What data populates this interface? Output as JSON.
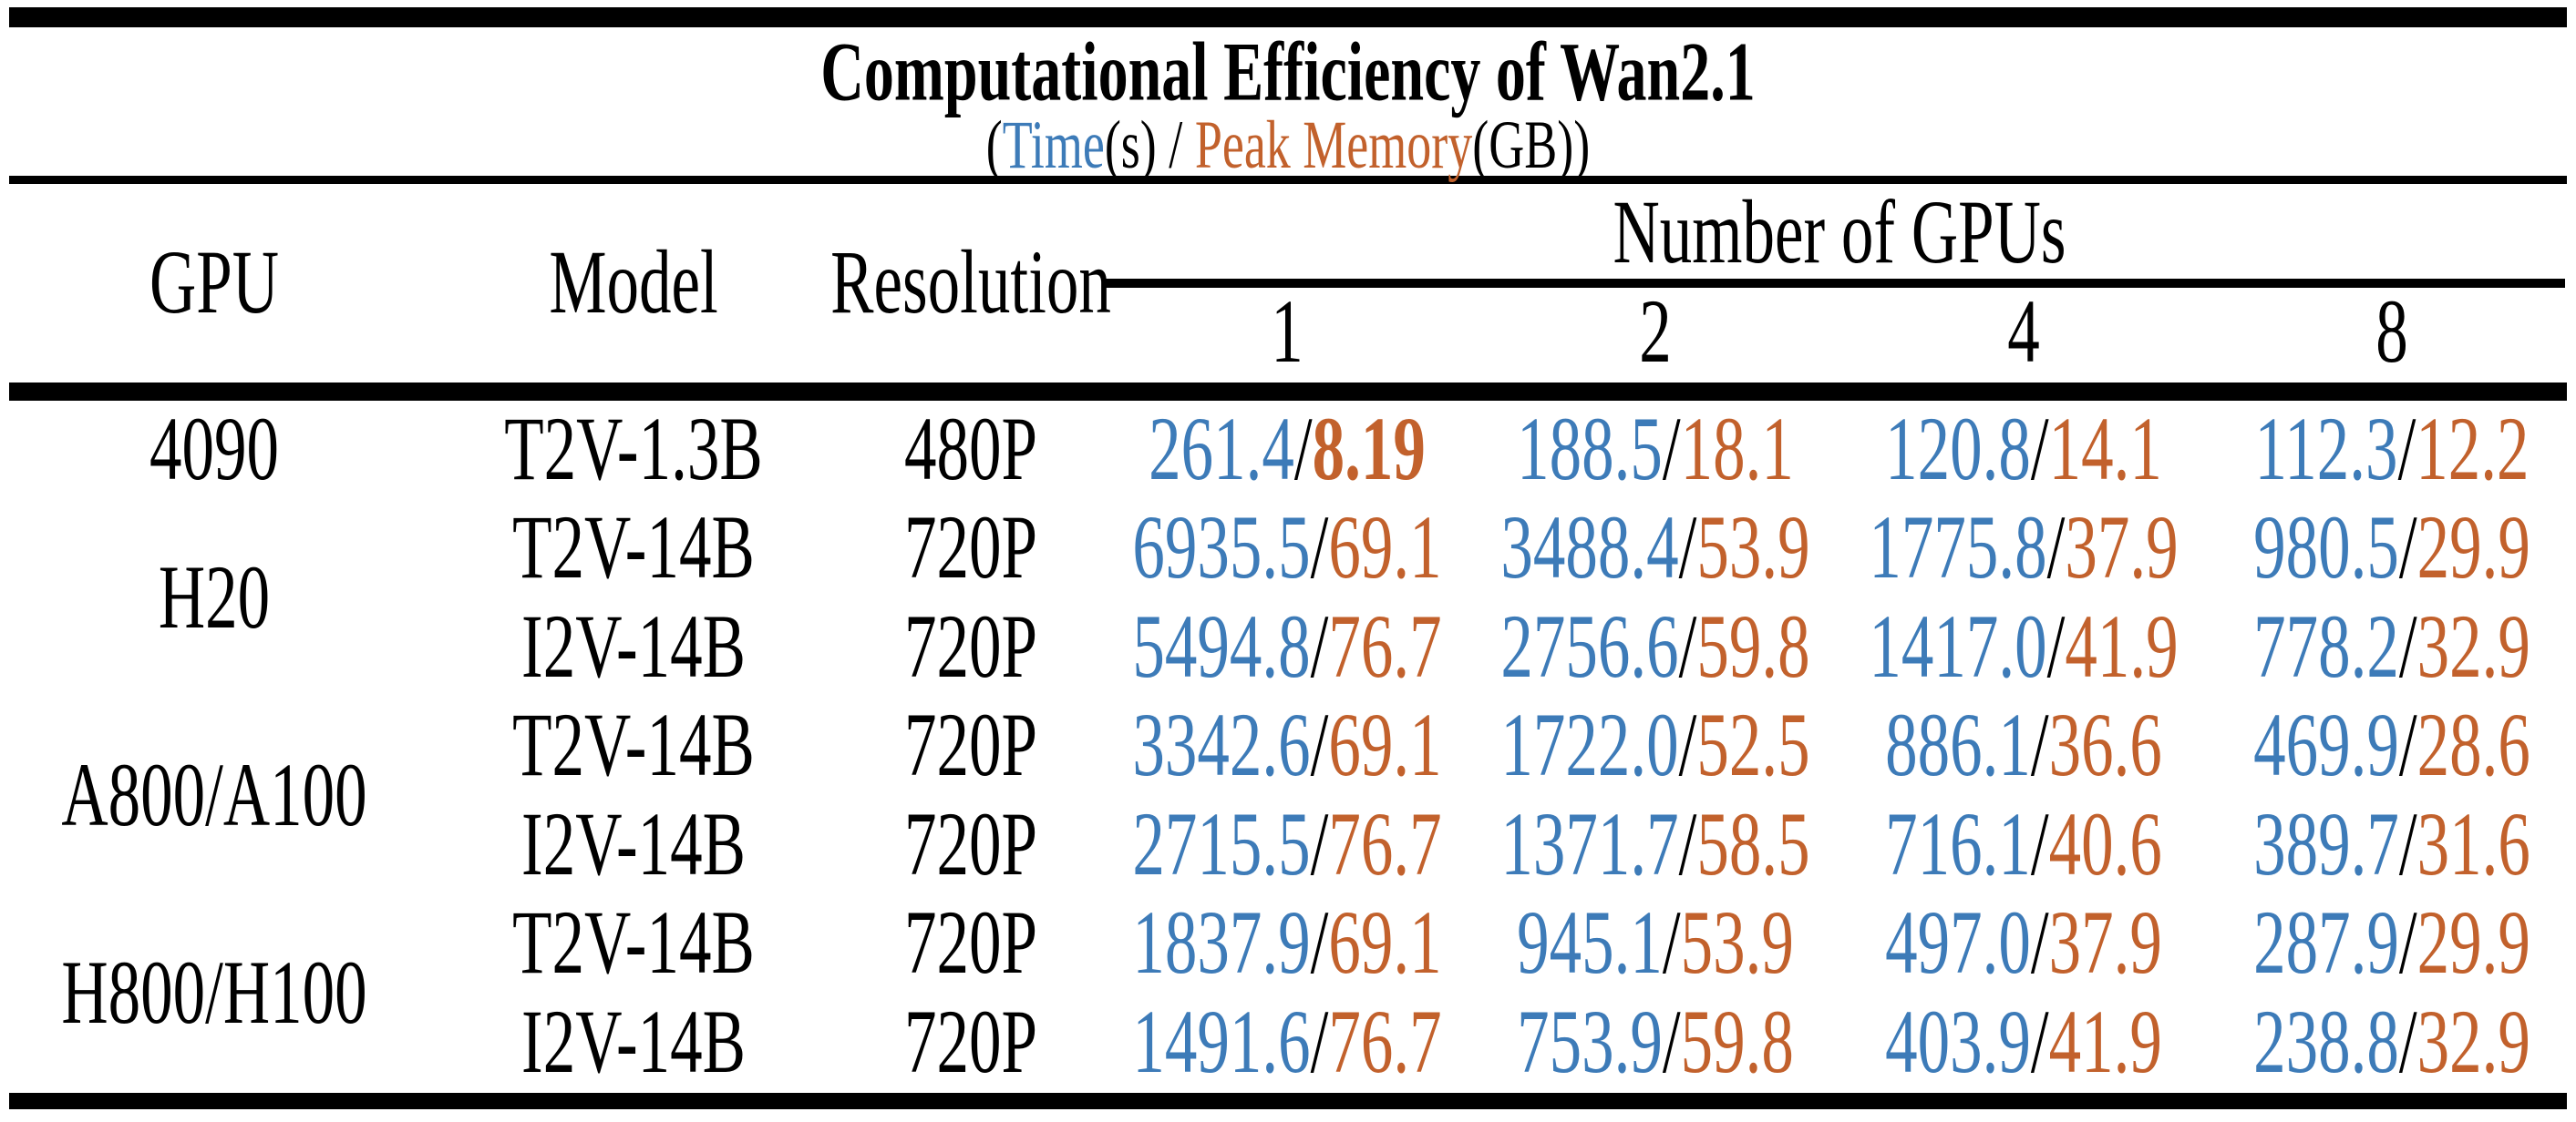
{
  "title": {
    "main": "Computational Efficiency of Wan2.1",
    "sub_open": "(",
    "time_label": "Time",
    "time_unit": "(s)",
    "sub_separator": " / ",
    "memory_label": "Peak Memory",
    "memory_unit": "(GB))"
  },
  "colors": {
    "time": "#3D7BB8",
    "memory": "#C2612C",
    "text": "#000000",
    "rule": "#000000"
  },
  "header": {
    "gpu": "GPU",
    "model": "Model",
    "resolution": "Resolution",
    "group": "Number of GPUs",
    "gpu_counts": [
      "1",
      "2",
      "4",
      "8"
    ]
  },
  "value_separator": "/",
  "chart_data": {
    "type": "table",
    "title": "Computational Efficiency of Wan2.1",
    "subtitle": "(Time(s) / Peak Memory(GB))",
    "columns": [
      "GPU",
      "Model",
      "Resolution",
      "1",
      "2",
      "4",
      "8"
    ],
    "column_group": {
      "label": "Number of GPUs",
      "spans": [
        "1",
        "2",
        "4",
        "8"
      ]
    },
    "units": {
      "time": "s",
      "memory": "GB"
    },
    "rows": [
      {
        "gpu": "4090",
        "model": "T2V-1.3B",
        "resolution": "480P",
        "cells": [
          {
            "time": "261.4",
            "mem": "8.19"
          },
          {
            "time": "188.5",
            "mem": "18.1"
          },
          {
            "time": "120.8",
            "mem": "14.1"
          },
          {
            "time": "112.3",
            "mem": "12.2"
          }
        ]
      },
      {
        "gpu": "H20",
        "model": "T2V-14B",
        "resolution": "720P",
        "cells": [
          {
            "time": "6935.5",
            "mem": "69.1"
          },
          {
            "time": "3488.4",
            "mem": "53.9"
          },
          {
            "time": "1775.8",
            "mem": "37.9"
          },
          {
            "time": "980.5",
            "mem": "29.9"
          }
        ]
      },
      {
        "gpu": "H20",
        "model": "I2V-14B",
        "resolution": "720P",
        "cells": [
          {
            "time": "5494.8",
            "mem": "76.7"
          },
          {
            "time": "2756.6",
            "mem": "59.8"
          },
          {
            "time": "1417.0",
            "mem": "41.9"
          },
          {
            "time": "778.2",
            "mem": "32.9"
          }
        ]
      },
      {
        "gpu": "A800/A100",
        "model": "T2V-14B",
        "resolution": "720P",
        "cells": [
          {
            "time": "3342.6",
            "mem": "69.1"
          },
          {
            "time": "1722.0",
            "mem": "52.5"
          },
          {
            "time": "886.1",
            "mem": "36.6"
          },
          {
            "time": "469.9",
            "mem": "28.6"
          }
        ]
      },
      {
        "gpu": "A800/A100",
        "model": "I2V-14B",
        "resolution": "720P",
        "cells": [
          {
            "time": "2715.5",
            "mem": "76.7"
          },
          {
            "time": "1371.7",
            "mem": "58.5"
          },
          {
            "time": "716.1",
            "mem": "40.6"
          },
          {
            "time": "389.7",
            "mem": "31.6"
          }
        ]
      },
      {
        "gpu": "H800/H100",
        "model": "T2V-14B",
        "resolution": "720P",
        "cells": [
          {
            "time": "1837.9",
            "mem": "69.1"
          },
          {
            "time": "945.1",
            "mem": "53.9"
          },
          {
            "time": "497.0",
            "mem": "37.9"
          },
          {
            "time": "287.9",
            "mem": "29.9"
          }
        ]
      },
      {
        "gpu": "H800/H100",
        "model": "I2V-14B",
        "resolution": "720P",
        "cells": [
          {
            "time": "1491.6",
            "mem": "76.7"
          },
          {
            "time": "753.9",
            "mem": "59.8"
          },
          {
            "time": "403.9",
            "mem": "41.9"
          },
          {
            "time": "238.8",
            "mem": "32.9"
          }
        ]
      }
    ]
  }
}
